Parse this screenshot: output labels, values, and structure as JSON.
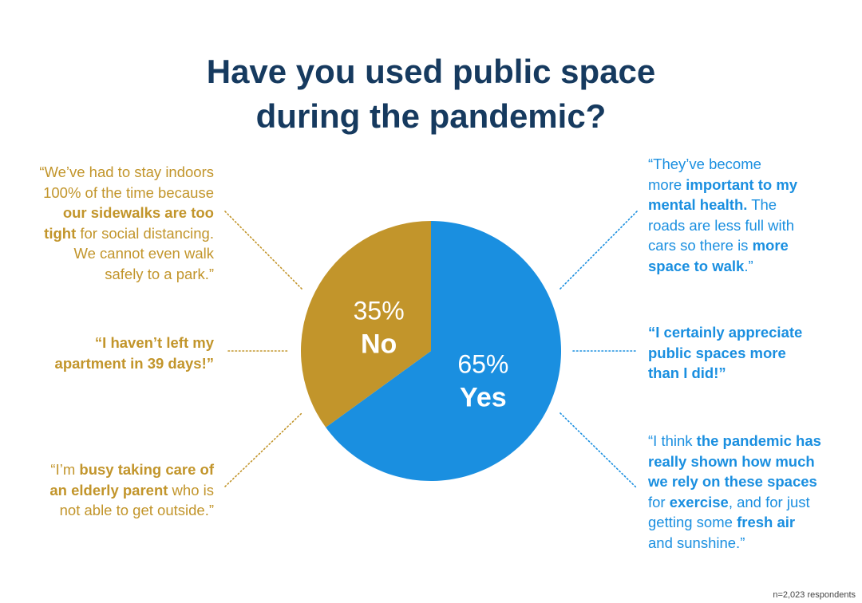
{
  "title": {
    "line1": "Have you used public space",
    "line2": "during the pandemic?"
  },
  "chart_data": {
    "type": "pie",
    "title": "Have you used public space during the pandemic?",
    "slices": [
      {
        "label": "Yes",
        "percent_label": "65%",
        "value": 65,
        "color": "#1a8fe0"
      },
      {
        "label": "No",
        "percent_label": "35%",
        "value": 35,
        "color": "#c2952b"
      }
    ]
  },
  "quotes": {
    "left": [
      {
        "color": "#c2952b",
        "lines": [
          [
            {
              "t": "“We’ve had to stay indoors",
              "b": false
            }
          ],
          [
            {
              "t": "100% of the time because",
              "b": false
            }
          ],
          [
            {
              "t": "our sidewalks are too",
              "b": true
            }
          ],
          [
            {
              "t": "tight",
              "b": true
            },
            {
              "t": " for social distancing.",
              "b": false
            }
          ],
          [
            {
              "t": "We cannot even walk",
              "b": false
            }
          ],
          [
            {
              "t": "safely to a park.”",
              "b": false
            }
          ]
        ]
      },
      {
        "color": "#c2952b",
        "lines": [
          [
            {
              "t": "“I haven’t left my",
              "b": true
            }
          ],
          [
            {
              "t": "apartment in 39 days!”",
              "b": true
            }
          ]
        ]
      },
      {
        "color": "#c2952b",
        "lines": [
          [
            {
              "t": "“I’m ",
              "b": false
            },
            {
              "t": "busy taking care of",
              "b": true
            }
          ],
          [
            {
              "t": "an elderly parent",
              "b": true
            },
            {
              "t": " who is",
              "b": false
            }
          ],
          [
            {
              "t": "not able to get outside.”",
              "b": false
            }
          ]
        ]
      }
    ],
    "right": [
      {
        "color": "#1a8fe0",
        "lines": [
          [
            {
              "t": "“They’ve become",
              "b": false
            }
          ],
          [
            {
              "t": "more ",
              "b": false
            },
            {
              "t": "important to my",
              "b": true
            }
          ],
          [
            {
              "t": "mental health.",
              "b": true
            },
            {
              "t": " The",
              "b": false
            }
          ],
          [
            {
              "t": "roads are less full with",
              "b": false
            }
          ],
          [
            {
              "t": "cars so there is ",
              "b": false
            },
            {
              "t": "more",
              "b": true
            }
          ],
          [
            {
              "t": "space to walk",
              "b": true
            },
            {
              "t": ".”",
              "b": false
            }
          ]
        ]
      },
      {
        "color": "#1a8fe0",
        "lines": [
          [
            {
              "t": "“I certainly appreciate",
              "b": true
            }
          ],
          [
            {
              "t": "public spaces more",
              "b": true
            }
          ],
          [
            {
              "t": "than I did!”",
              "b": true
            }
          ]
        ]
      },
      {
        "color": "#1a8fe0",
        "lines": [
          [
            {
              "t": "“I think ",
              "b": false
            },
            {
              "t": "the pandemic has",
              "b": true
            }
          ],
          [
            {
              "t": "really shown how much",
              "b": true
            }
          ],
          [
            {
              "t": "we rely on these spaces",
              "b": true
            }
          ],
          [
            {
              "t": "for ",
              "b": false
            },
            {
              "t": "exercise",
              "b": true
            },
            {
              "t": ", and for just",
              "b": false
            }
          ],
          [
            {
              "t": "getting some ",
              "b": false
            },
            {
              "t": "fresh air",
              "b": true
            }
          ],
          [
            {
              "t": "and sunshine.”",
              "b": false
            }
          ]
        ]
      }
    ]
  },
  "footnote": "n=2,023 respondents"
}
